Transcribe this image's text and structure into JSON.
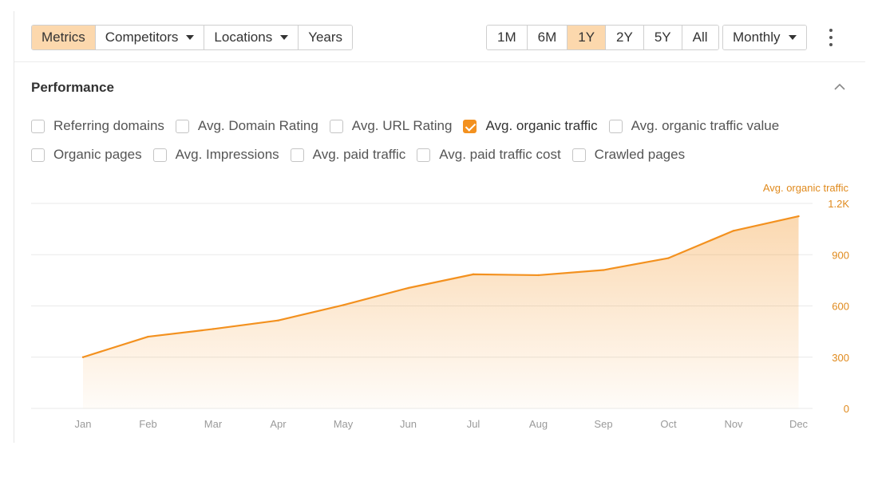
{
  "toolbar": {
    "left_buttons": [
      {
        "label": "Metrics",
        "active": true,
        "dropdown": false
      },
      {
        "label": "Competitors",
        "active": false,
        "dropdown": true
      },
      {
        "label": "Locations",
        "active": false,
        "dropdown": true
      },
      {
        "label": "Years",
        "active": false,
        "dropdown": false
      }
    ],
    "ranges": [
      {
        "label": "1M",
        "active": false
      },
      {
        "label": "6M",
        "active": false
      },
      {
        "label": "1Y",
        "active": true
      },
      {
        "label": "2Y",
        "active": false
      },
      {
        "label": "5Y",
        "active": false
      },
      {
        "label": "All",
        "active": false
      }
    ],
    "interval": "Monthly"
  },
  "section": {
    "title": "Performance"
  },
  "metrics_row1": [
    {
      "label": "Referring domains",
      "checked": false
    },
    {
      "label": "Avg. Domain Rating",
      "checked": false
    },
    {
      "label": "Avg. URL Rating",
      "checked": false
    },
    {
      "label": "Avg. organic traffic",
      "checked": true
    },
    {
      "label": "Avg. organic traffic value",
      "checked": false
    }
  ],
  "metrics_row2": [
    {
      "label": "Organic pages",
      "checked": false
    },
    {
      "label": "Avg. Impressions",
      "checked": false
    },
    {
      "label": "Avg. paid traffic",
      "checked": false
    },
    {
      "label": "Avg. paid traffic cost",
      "checked": false
    },
    {
      "label": "Crawled pages",
      "checked": false
    }
  ],
  "colors": {
    "accent": "#f3911f",
    "active_button": "#fcd8ad",
    "axis_label": "#e08a1d"
  },
  "chart_data": {
    "type": "area",
    "x": [
      "Jan",
      "Feb",
      "Mar",
      "Apr",
      "May",
      "Jun",
      "Jul",
      "Aug",
      "Sep",
      "Oct",
      "Nov",
      "Dec"
    ],
    "series": [
      {
        "name": "Avg. organic traffic",
        "values": [
          300,
          420,
          465,
          515,
          605,
          705,
          785,
          780,
          810,
          880,
          1040,
          1125
        ]
      }
    ],
    "yticks": [
      0,
      300,
      600,
      900,
      1200
    ],
    "ytick_labels": [
      "0",
      "300",
      "600",
      "900",
      "1.2K"
    ],
    "ylim": [
      0,
      1200
    ],
    "y_axis_side": "right",
    "grid": true
  }
}
